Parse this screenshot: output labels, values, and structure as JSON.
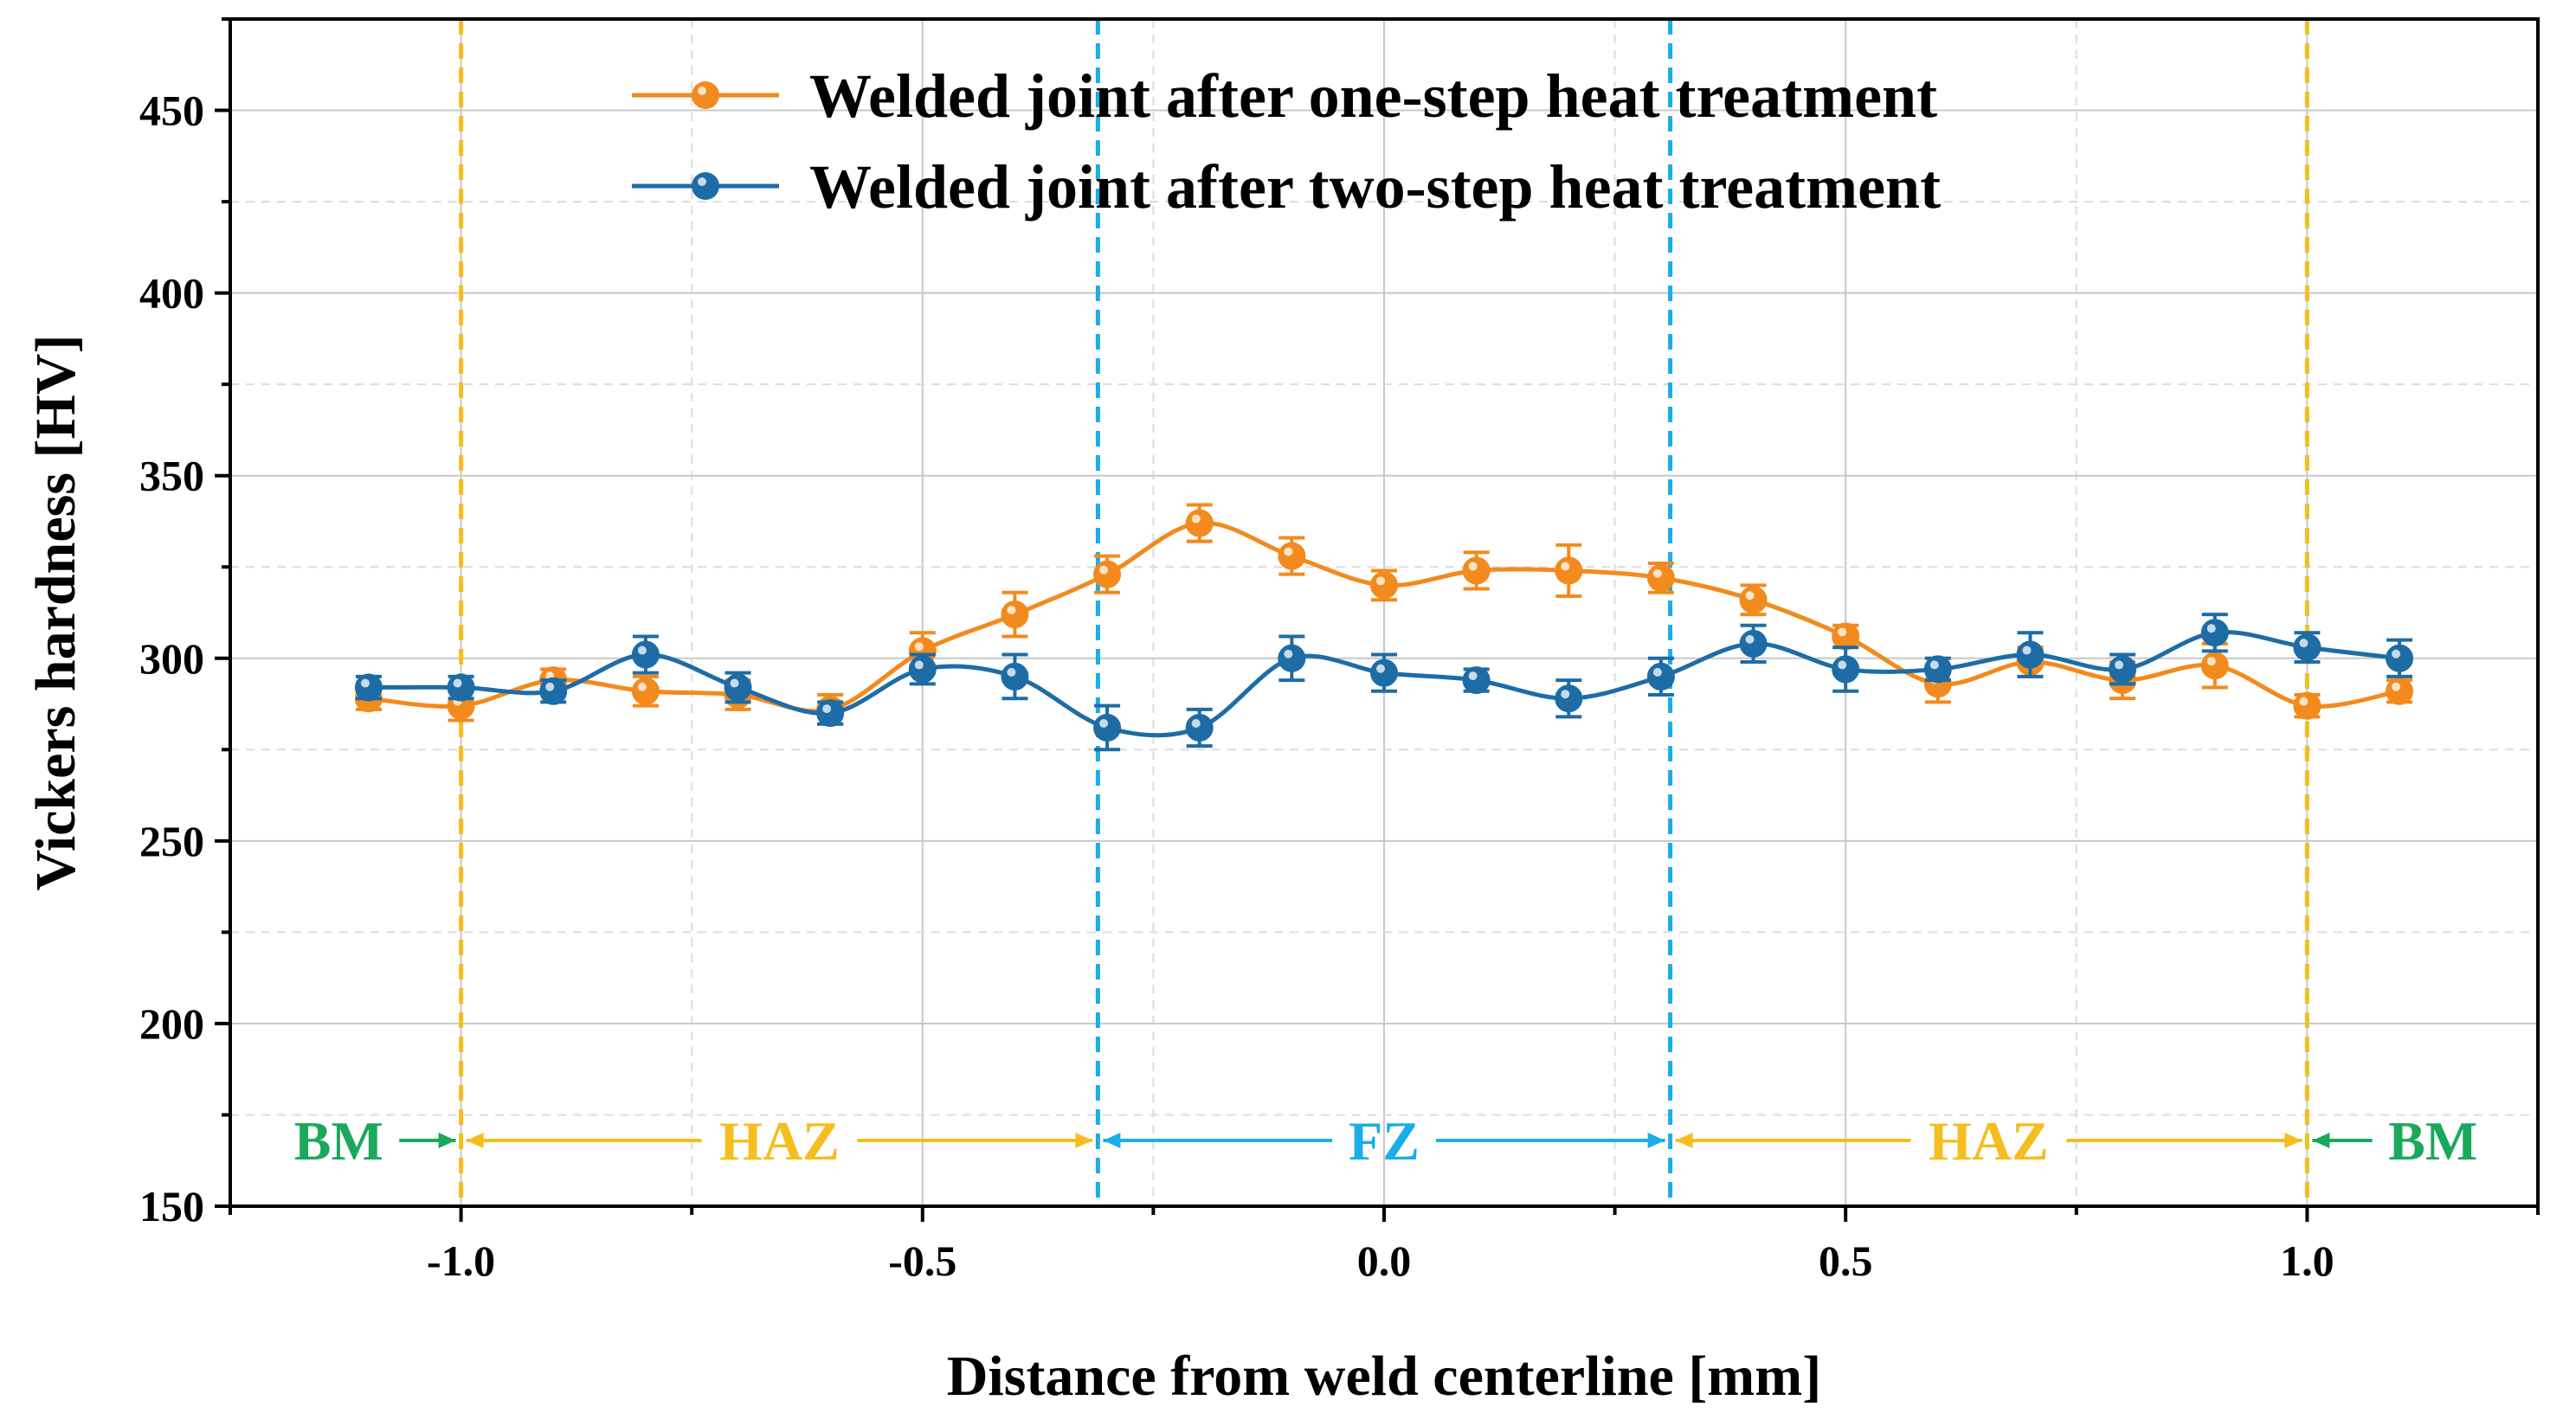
{
  "chart_data": {
    "type": "line",
    "xlabel": "Distance from weld centerline [mm]",
    "ylabel": "Vickers hardness [HV]",
    "xlim": [
      -1.25,
      1.25
    ],
    "ylim": [
      150,
      475
    ],
    "x_ticks": [
      -1.0,
      -0.5,
      0.0,
      0.5,
      1.0
    ],
    "x_tick_labels": [
      "-1.0",
      "-0.5",
      "0.0",
      "0.5",
      "1.0"
    ],
    "y_ticks": [
      150,
      200,
      250,
      300,
      350,
      400,
      450
    ],
    "y_tick_labels": [
      "150",
      "200",
      "250",
      "300",
      "350",
      "400",
      "450"
    ],
    "grid": true,
    "legend_position": "top-center",
    "x": [
      -1.1,
      -1.0,
      -0.9,
      -0.8,
      -0.7,
      -0.6,
      -0.5,
      -0.4,
      -0.3,
      -0.2,
      -0.1,
      0.0,
      0.1,
      0.2,
      0.3,
      0.4,
      0.5,
      0.6,
      0.7,
      0.8,
      0.9,
      1.0,
      1.1
    ],
    "series": [
      {
        "name": "Welded joint after one-step heat treatment",
        "color": "#f28a1e",
        "values": [
          289,
          287,
          294,
          291,
          290,
          286,
          302,
          312,
          323,
          337,
          328,
          320,
          324,
          324,
          322,
          316,
          306,
          293,
          299,
          294,
          298,
          287,
          291
        ],
        "errors": [
          3,
          4,
          3,
          4,
          4,
          4,
          5,
          6,
          5,
          5,
          5,
          4,
          5,
          7,
          4,
          4,
          3,
          5,
          4,
          5,
          6,
          3,
          3
        ]
      },
      {
        "name": "Welded joint after two-step heat treatment",
        "color": "#1d6ca6",
        "values": [
          292,
          292,
          291,
          301,
          292,
          285,
          297,
          295,
          281,
          281,
          300,
          296,
          294,
          289,
          295,
          304,
          297,
          297,
          301,
          297,
          307,
          303,
          300
        ],
        "errors": [
          3,
          3,
          3,
          5,
          4,
          3,
          4,
          6,
          6,
          5,
          6,
          5,
          3,
          5,
          5,
          5,
          6,
          3,
          6,
          4,
          5,
          4,
          5
        ]
      }
    ],
    "boundaries": [
      {
        "x": -1.0,
        "color": "#f5bd1f"
      },
      {
        "x": -0.31,
        "color": "#1aaee6"
      },
      {
        "x": 0.31,
        "color": "#1aaee6"
      },
      {
        "x": 1.0,
        "color": "#f5bd1f"
      }
    ],
    "zones": [
      {
        "label": "BM",
        "color": "#1aa85a"
      },
      {
        "label": "HAZ",
        "color": "#f5bd1f"
      },
      {
        "label": "FZ",
        "color": "#1aaee6"
      },
      {
        "label": "HAZ",
        "color": "#f5bd1f"
      },
      {
        "label": "BM",
        "color": "#1aa85a"
      }
    ]
  }
}
